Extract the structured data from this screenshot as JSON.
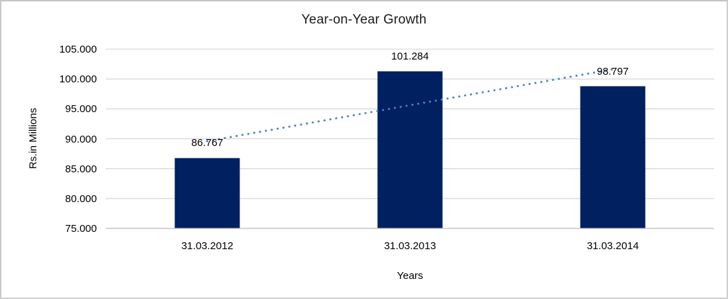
{
  "chart_data": {
    "type": "bar",
    "title": "Year-on-Year Growth",
    "xlabel": "Years",
    "ylabel": "Rs.in Millions",
    "categories": [
      "31.03.2012",
      "31.03.2013",
      "31.03.2014"
    ],
    "values": [
      86.767,
      101.284,
      98.797
    ],
    "data_labels": [
      "86.767",
      "101.284",
      "98.797"
    ],
    "ylim": [
      75,
      105
    ],
    "ytick_step": 5,
    "ytick_labels": [
      "75.000",
      "80.000",
      "85.000",
      "90.000",
      "95.000",
      "100.000",
      "105.000"
    ],
    "grid": true,
    "legend": "none",
    "trendline": {
      "type": "linear",
      "style": "dotted",
      "color": "#4f81bd"
    },
    "colors": {
      "bar": "#002060",
      "gridline": "#d9d9d9",
      "axis_line": "#c0c0c0",
      "text": "#000000",
      "frame_border": "#cfcfcf",
      "background": "#ffffff"
    }
  }
}
